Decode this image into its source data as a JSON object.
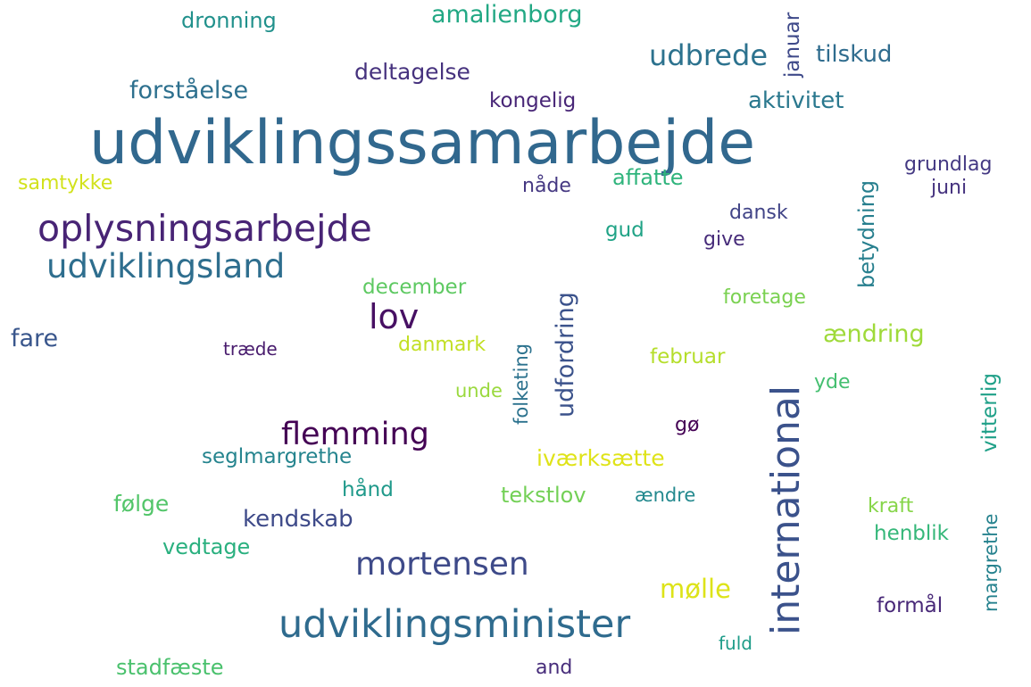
{
  "words": [
    {
      "text": "udviklingssamarbejde",
      "color": "#31688e"
    },
    {
      "text": "oplysningsarbejde",
      "color": "#482475"
    },
    {
      "text": "udviklingsland",
      "color": "#2e6e8e"
    },
    {
      "text": "udviklingsminister",
      "color": "#2f6b8e"
    },
    {
      "text": "international",
      "color": "#3b528b"
    },
    {
      "text": "mortensen",
      "color": "#3e4a89"
    },
    {
      "text": "flemming",
      "color": "#440154"
    },
    {
      "text": "lov",
      "color": "#471063"
    },
    {
      "text": "udbrede",
      "color": "#2c728e"
    },
    {
      "text": "amalienborg",
      "color": "#22a884"
    },
    {
      "text": "forståelse",
      "color": "#2d708e"
    },
    {
      "text": "deltagelse",
      "color": "#46327e"
    },
    {
      "text": "dronning",
      "color": "#21918c"
    },
    {
      "text": "tilskud",
      "color": "#2f6c8e"
    },
    {
      "text": "januar",
      "color": "#3e4989"
    },
    {
      "text": "kongelig",
      "color": "#482677"
    },
    {
      "text": "aktivitet",
      "color": "#2a788e"
    },
    {
      "text": "samtykke",
      "color": "#d2e21b"
    },
    {
      "text": "nåde",
      "color": "#453882"
    },
    {
      "text": "affatte",
      "color": "#2fb47c"
    },
    {
      "text": "grundlag",
      "color": "#443983"
    },
    {
      "text": "juni",
      "color": "#46337f"
    },
    {
      "text": "betydning",
      "color": "#277f8e"
    },
    {
      "text": "dansk",
      "color": "#414487"
    },
    {
      "text": "gud",
      "color": "#20a386"
    },
    {
      "text": "give",
      "color": "#472c7a"
    },
    {
      "text": "udfordring",
      "color": "#3b528b"
    },
    {
      "text": "december",
      "color": "#5ec962"
    },
    {
      "text": "foretage",
      "color": "#7ad151"
    },
    {
      "text": "fare",
      "color": "#39568c"
    },
    {
      "text": "træde",
      "color": "#481b6d"
    },
    {
      "text": "danmark",
      "color": "#c2df23"
    },
    {
      "text": "folketing",
      "color": "#2c728e"
    },
    {
      "text": "ændring",
      "color": "#9fda3a"
    },
    {
      "text": "februar",
      "color": "#b5de2b"
    },
    {
      "text": "unde",
      "color": "#9ad93e"
    },
    {
      "text": "yde",
      "color": "#44bf70"
    },
    {
      "text": "vitterlig",
      "color": "#1fa088"
    },
    {
      "text": "gø",
      "color": "#440154"
    },
    {
      "text": "seglmargrethe",
      "color": "#25848e"
    },
    {
      "text": "iværksætte",
      "color": "#dfe318"
    },
    {
      "text": "hånd",
      "color": "#1f998a"
    },
    {
      "text": "følge",
      "color": "#52c569"
    },
    {
      "text": "tekstlov",
      "color": "#73d056"
    },
    {
      "text": "ændre",
      "color": "#23898e"
    },
    {
      "text": "kendskab",
      "color": "#3e4a89"
    },
    {
      "text": "kraft",
      "color": "#86d549"
    },
    {
      "text": "vedtage",
      "color": "#2ab07f"
    },
    {
      "text": "henblik",
      "color": "#35b779"
    },
    {
      "text": "margrethe",
      "color": "#26828e"
    },
    {
      "text": "mølle",
      "color": "#dde318"
    },
    {
      "text": "formål",
      "color": "#482878"
    },
    {
      "text": "fuld",
      "color": "#1e9c89"
    },
    {
      "text": "stadfæste",
      "color": "#4ac16d"
    },
    {
      "text": "and",
      "color": "#472d7b"
    }
  ]
}
